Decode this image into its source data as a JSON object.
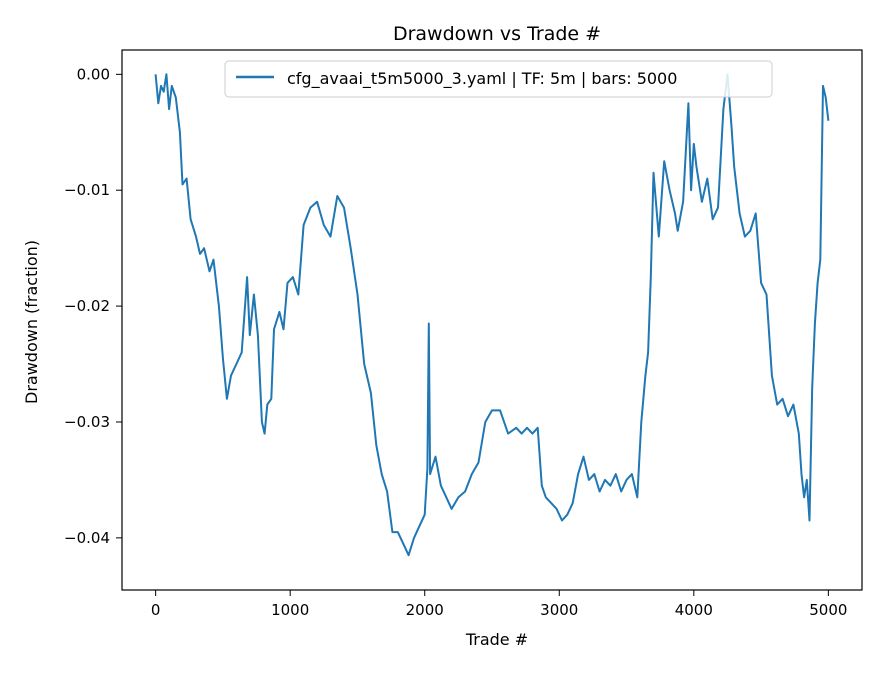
{
  "chart_data": {
    "type": "line",
    "title": "Drawdown vs Trade #",
    "xlabel": "Trade #",
    "ylabel": "Drawdown (fraction)",
    "xlim": [
      -250,
      5250
    ],
    "ylim": [
      -0.0445,
      0.0021
    ],
    "xticks": [
      0,
      1000,
      2000,
      3000,
      4000,
      5000
    ],
    "xtick_labels": [
      "0",
      "1000",
      "2000",
      "3000",
      "4000",
      "5000"
    ],
    "yticks": [
      0.0,
      -0.01,
      -0.02,
      -0.03,
      -0.04
    ],
    "ytick_labels": [
      "0.00",
      "−0.01",
      "−0.02",
      "−0.03",
      "−0.04"
    ],
    "grid": false,
    "legend_position": "top-center",
    "series": [
      {
        "name": "cfg_avaai_t5m5000_3.yaml | TF: 5m | bars: 5000",
        "color": "#1f77b4",
        "x": [
          0,
          20,
          40,
          60,
          80,
          100,
          120,
          150,
          180,
          200,
          230,
          260,
          300,
          330,
          360,
          400,
          430,
          470,
          500,
          530,
          560,
          600,
          640,
          680,
          700,
          730,
          760,
          790,
          810,
          830,
          860,
          880,
          920,
          950,
          980,
          1020,
          1060,
          1100,
          1150,
          1200,
          1250,
          1300,
          1350,
          1400,
          1450,
          1500,
          1550,
          1600,
          1640,
          1680,
          1720,
          1760,
          1800,
          1840,
          1880,
          1920,
          1960,
          2000,
          2020,
          2030,
          2040,
          2080,
          2120,
          2160,
          2200,
          2250,
          2300,
          2350,
          2400,
          2450,
          2500,
          2560,
          2620,
          2680,
          2720,
          2760,
          2800,
          2840,
          2870,
          2900,
          2940,
          2980,
          3020,
          3060,
          3100,
          3140,
          3180,
          3220,
          3260,
          3300,
          3340,
          3380,
          3420,
          3460,
          3500,
          3540,
          3580,
          3610,
          3640,
          3660,
          3680,
          3700,
          3740,
          3780,
          3820,
          3860,
          3880,
          3920,
          3960,
          3980,
          4000,
          4020,
          4060,
          4100,
          4140,
          4180,
          4220,
          4250,
          4280,
          4300,
          4340,
          4380,
          4420,
          4460,
          4500,
          4540,
          4580,
          4620,
          4660,
          4700,
          4740,
          4780,
          4800,
          4820,
          4840,
          4860,
          4880,
          4900,
          4920,
          4940,
          4960,
          4980,
          5000
        ],
        "y": [
          0.0,
          -0.0025,
          -0.001,
          -0.0015,
          0.0,
          -0.003,
          -0.001,
          -0.002,
          -0.005,
          -0.0095,
          -0.009,
          -0.0125,
          -0.014,
          -0.0155,
          -0.015,
          -0.017,
          -0.016,
          -0.02,
          -0.0245,
          -0.028,
          -0.026,
          -0.025,
          -0.024,
          -0.0175,
          -0.0225,
          -0.019,
          -0.0225,
          -0.03,
          -0.031,
          -0.0285,
          -0.028,
          -0.022,
          -0.0205,
          -0.022,
          -0.018,
          -0.0175,
          -0.019,
          -0.013,
          -0.0115,
          -0.011,
          -0.013,
          -0.014,
          -0.0105,
          -0.0115,
          -0.015,
          -0.019,
          -0.025,
          -0.0275,
          -0.032,
          -0.0345,
          -0.036,
          -0.0395,
          -0.0395,
          -0.0405,
          -0.0415,
          -0.04,
          -0.039,
          -0.038,
          -0.034,
          -0.0215,
          -0.0345,
          -0.033,
          -0.0355,
          -0.0365,
          -0.0375,
          -0.0365,
          -0.036,
          -0.0345,
          -0.0335,
          -0.03,
          -0.029,
          -0.029,
          -0.031,
          -0.0305,
          -0.031,
          -0.0305,
          -0.031,
          -0.0305,
          -0.0355,
          -0.0365,
          -0.037,
          -0.0375,
          -0.0385,
          -0.038,
          -0.037,
          -0.0345,
          -0.033,
          -0.035,
          -0.0345,
          -0.036,
          -0.035,
          -0.0355,
          -0.0345,
          -0.036,
          -0.035,
          -0.0345,
          -0.0365,
          -0.03,
          -0.026,
          -0.024,
          -0.0175,
          -0.0085,
          -0.014,
          -0.0075,
          -0.01,
          -0.012,
          -0.0135,
          -0.011,
          -0.0025,
          -0.01,
          -0.006,
          -0.008,
          -0.011,
          -0.009,
          -0.0125,
          -0.0115,
          -0.003,
          0.0,
          -0.0045,
          -0.008,
          -0.012,
          -0.014,
          -0.0135,
          -0.012,
          -0.018,
          -0.019,
          -0.026,
          -0.0285,
          -0.028,
          -0.0295,
          -0.0285,
          -0.031,
          -0.0345,
          -0.0365,
          -0.035,
          -0.0385,
          -0.027,
          -0.0215,
          -0.018,
          -0.016,
          -0.001,
          -0.002,
          -0.004
        ]
      }
    ]
  }
}
